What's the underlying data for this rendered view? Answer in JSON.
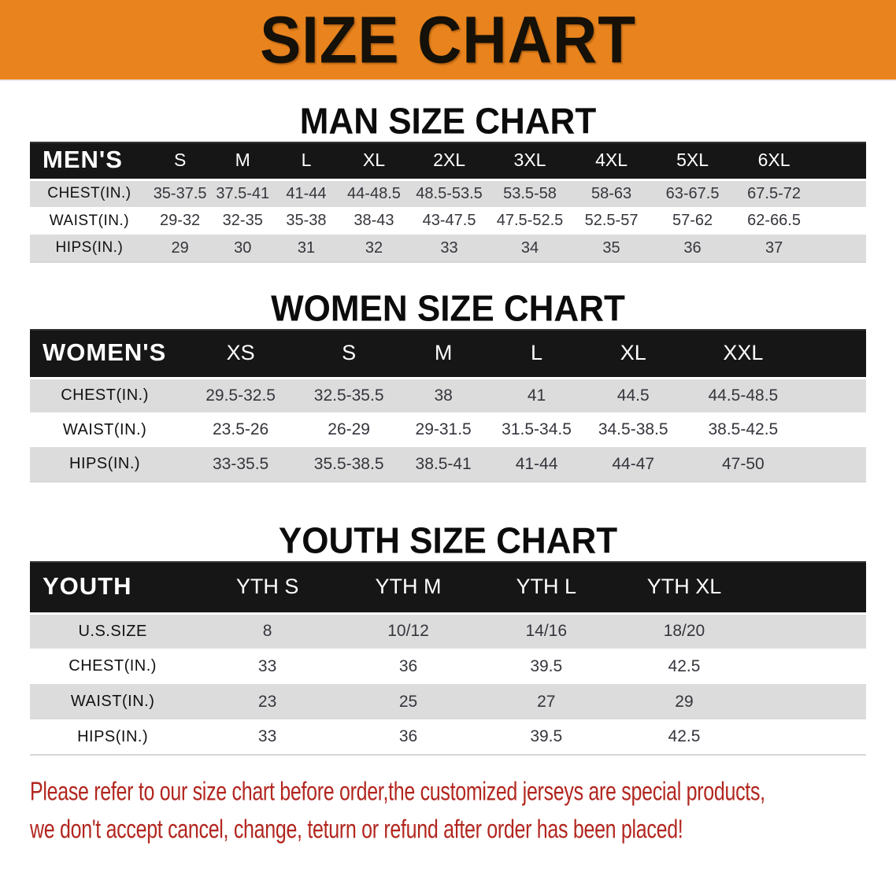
{
  "banner": {
    "title": "SIZE CHART"
  },
  "colors": {
    "banner_orange": "#E8831E",
    "header_black": "#161616",
    "row_gray": "#DCDCDC",
    "note_red": "#B2261F",
    "text_dark": "#35353D"
  },
  "men": {
    "heading": "MAN SIZE CHART",
    "table": {
      "corner": "MEN'S",
      "columns": [
        "S",
        "M",
        "L",
        "XL",
        "2XL",
        "3XL",
        "4XL",
        "5XL",
        "6XL"
      ],
      "rows": [
        {
          "label": "CHEST(IN.)",
          "values": [
            "35-37.5",
            "37.5-41",
            "41-44",
            "44-48.5",
            "48.5-53.5",
            "53.5-58",
            "58-63",
            "63-67.5",
            "67.5-72"
          ]
        },
        {
          "label": "WAIST(IN.)",
          "values": [
            "29-32",
            "32-35",
            "35-38",
            "38-43",
            "43-47.5",
            "47.5-52.5",
            "52.5-57",
            "57-62",
            "62-66.5"
          ]
        },
        {
          "label": "HIPS(IN.)",
          "values": [
            "29",
            "30",
            "31",
            "32",
            "33",
            "34",
            "35",
            "36",
            "37"
          ]
        }
      ]
    }
  },
  "women": {
    "heading": "WOMEN SIZE CHART",
    "table": {
      "corner": "WOMEN'S",
      "columns": [
        "XS",
        "S",
        "M",
        "L",
        "XL",
        "XXL"
      ],
      "rows": [
        {
          "label": "CHEST(IN.)",
          "values": [
            "29.5-32.5",
            "32.5-35.5",
            "38",
            "41",
            "44.5",
            "44.5-48.5"
          ]
        },
        {
          "label": "WAIST(IN.)",
          "values": [
            "23.5-26",
            "26-29",
            "29-31.5",
            "31.5-34.5",
            "34.5-38.5",
            "38.5-42.5"
          ]
        },
        {
          "label": "HIPS(IN.)",
          "values": [
            "33-35.5",
            "35.5-38.5",
            "38.5-41",
            "41-44",
            "44-47",
            "47-50"
          ]
        }
      ]
    }
  },
  "youth": {
    "heading": "YOUTH SIZE CHART",
    "table": {
      "corner": "YOUTH",
      "columns": [
        "YTH S",
        "YTH M",
        "YTH L",
        "YTH XL"
      ],
      "rows": [
        {
          "label": "U.S.SIZE",
          "values": [
            "8",
            "10/12",
            "14/16",
            "18/20"
          ]
        },
        {
          "label": "CHEST(IN.)",
          "values": [
            "33",
            "36",
            "39.5",
            "42.5"
          ]
        },
        {
          "label": "WAIST(IN.)",
          "values": [
            "23",
            "25",
            "27",
            "29"
          ]
        },
        {
          "label": "HIPS(IN.)",
          "values": [
            "33",
            "36",
            "39.5",
            "42.5"
          ]
        }
      ]
    }
  },
  "footer": {
    "line1": "Please refer to our size chart before order,the customized jerseys are special products,",
    "line2": "we don't accept cancel, change, teturn or refund after order has been placed!"
  }
}
